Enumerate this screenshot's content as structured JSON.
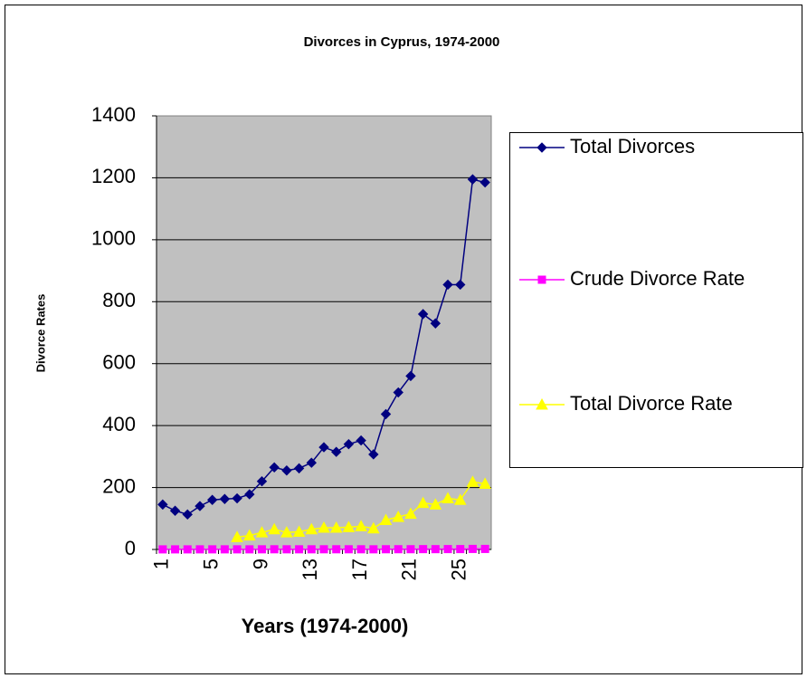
{
  "chart_data": {
    "type": "line",
    "title": "Divorces in Cyprus, 1974-2000",
    "x_label": "Years (1974-2000)",
    "y_label": "Divorce Rates",
    "categories": [
      1,
      null,
      null,
      null,
      5,
      null,
      null,
      null,
      9,
      null,
      null,
      null,
      13,
      null,
      null,
      null,
      17,
      null,
      null,
      null,
      21,
      null,
      null,
      null,
      25,
      null,
      null
    ],
    "series": [
      {
        "name": "Total Divorces",
        "color": "#000080",
        "marker": "diamond",
        "values": [
          145,
          125,
          113,
          140,
          160,
          163,
          165,
          178,
          220,
          265,
          255,
          262,
          280,
          330,
          315,
          340,
          352,
          307,
          437,
          507,
          560,
          760,
          730,
          855,
          855,
          1195,
          1185
        ]
      },
      {
        "name": "Crude Divorce Rate",
        "color": "#FF00FF",
        "marker": "square",
        "values": [
          0.3,
          0.3,
          0.3,
          0.4,
          0.4,
          0.4,
          0.4,
          0.4,
          0.5,
          0.6,
          0.5,
          0.5,
          0.5,
          0.6,
          0.6,
          0.6,
          0.6,
          0.5,
          0.7,
          0.8,
          0.8,
          1.1,
          1.0,
          1.2,
          1.2,
          1.7,
          1.7
        ]
      },
      {
        "name": "Total Divorce Rate",
        "color": "#FFFF00",
        "marker": "triangle",
        "values": [
          null,
          null,
          null,
          null,
          null,
          null,
          40,
          45,
          55,
          65,
          55,
          57,
          65,
          70,
          70,
          72,
          75,
          68,
          95,
          105,
          115,
          150,
          145,
          165,
          160,
          218,
          212
        ]
      }
    ],
    "ylim": [
      0,
      1400
    ],
    "yticks": [
      0,
      200,
      400,
      600,
      800,
      1000,
      1200,
      1400
    ],
    "grid": true,
    "legend": "right"
  }
}
